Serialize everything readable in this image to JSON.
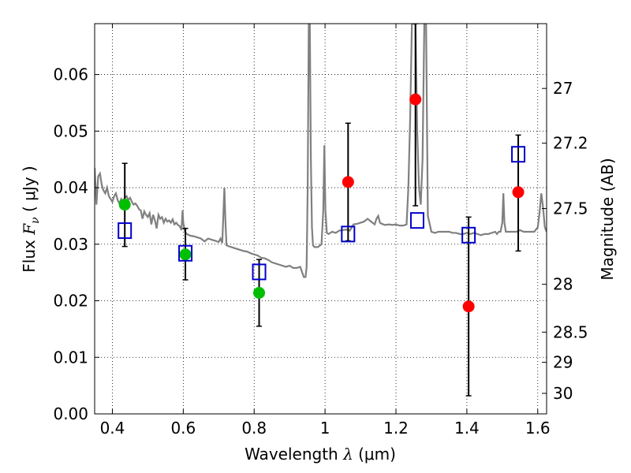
{
  "chart_data": {
    "type": "scatter",
    "xlabel": {
      "prefix": "Wavelength  ",
      "symbol": "λ",
      "unit": " (μm)"
    },
    "ylabel": {
      "prefix": "Flux  ",
      "symbol": "F",
      "subscript": "ν",
      "unit": "  ( μJy )"
    },
    "y2label": "Magnitude (AB)",
    "xlim": [
      0.35,
      1.625
    ],
    "ylim": [
      0.0,
      0.069
    ],
    "grid": true,
    "xticks": [
      {
        "v": 0.4,
        "label": "0.4"
      },
      {
        "v": 0.6,
        "label": "0.6"
      },
      {
        "v": 0.8,
        "label": "0.8"
      },
      {
        "v": 1.0,
        "label": "1"
      },
      {
        "v": 1.2,
        "label": "1.2"
      },
      {
        "v": 1.4,
        "label": "1.4"
      },
      {
        "v": 1.6,
        "label": "1.6"
      }
    ],
    "yticks": [
      {
        "v": 0.0,
        "label": "0.00"
      },
      {
        "v": 0.01,
        "label": "0.01"
      },
      {
        "v": 0.02,
        "label": "0.02"
      },
      {
        "v": 0.03,
        "label": "0.03"
      },
      {
        "v": 0.04,
        "label": "0.04"
      },
      {
        "v": 0.05,
        "label": "0.05"
      },
      {
        "v": 0.06,
        "label": "0.06"
      }
    ],
    "y2ticks": [
      {
        "v": 27,
        "label": "27"
      },
      {
        "v": 27.2,
        "label": "27.2"
      },
      {
        "v": 27.5,
        "label": "27.5"
      },
      {
        "v": 28,
        "label": "28"
      },
      {
        "v": 28.5,
        "label": "28.5"
      },
      {
        "v": 29,
        "label": "29"
      },
      {
        "v": 30,
        "label": "30"
      }
    ],
    "model_spectrum": {
      "color": "#808080",
      "points": [
        [
          0.35,
          0.0435
        ],
        [
          0.355,
          0.037
        ],
        [
          0.36,
          0.042
        ],
        [
          0.365,
          0.0425
        ],
        [
          0.37,
          0.0405
        ],
        [
          0.375,
          0.0395
        ],
        [
          0.38,
          0.039
        ],
        [
          0.385,
          0.04
        ],
        [
          0.39,
          0.0385
        ],
        [
          0.395,
          0.038
        ],
        [
          0.4,
          0.0375
        ],
        [
          0.405,
          0.0385
        ],
        [
          0.41,
          0.039
        ],
        [
          0.415,
          0.0378
        ],
        [
          0.42,
          0.0372
        ],
        [
          0.425,
          0.038
        ],
        [
          0.43,
          0.0375
        ],
        [
          0.435,
          0.0382
        ],
        [
          0.44,
          0.0385
        ],
        [
          0.445,
          0.0378
        ],
        [
          0.45,
          0.0382
        ],
        [
          0.455,
          0.0375
        ],
        [
          0.46,
          0.037
        ],
        [
          0.465,
          0.0372
        ],
        [
          0.47,
          0.0368
        ],
        [
          0.475,
          0.0362
        ],
        [
          0.48,
          0.036
        ],
        [
          0.485,
          0.0345
        ],
        [
          0.49,
          0.0358
        ],
        [
          0.495,
          0.0352
        ],
        [
          0.5,
          0.0348
        ],
        [
          0.505,
          0.0355
        ],
        [
          0.51,
          0.0335
        ],
        [
          0.515,
          0.0352
        ],
        [
          0.52,
          0.0342
        ],
        [
          0.525,
          0.0328
        ],
        [
          0.53,
          0.0352
        ],
        [
          0.535,
          0.0345
        ],
        [
          0.54,
          0.0348
        ],
        [
          0.545,
          0.0338
        ],
        [
          0.55,
          0.0345
        ],
        [
          0.555,
          0.034
        ],
        [
          0.56,
          0.0342
        ],
        [
          0.565,
          0.0338
        ],
        [
          0.57,
          0.0344
        ],
        [
          0.575,
          0.0335
        ],
        [
          0.58,
          0.0338
        ],
        [
          0.585,
          0.0334
        ],
        [
          0.59,
          0.0332
        ],
        [
          0.595,
          0.0325
        ],
        [
          0.598,
          0.036
        ],
        [
          0.6,
          0.0338
        ],
        [
          0.605,
          0.0322
        ],
        [
          0.61,
          0.0318
        ],
        [
          0.62,
          0.0315
        ],
        [
          0.63,
          0.0314
        ],
        [
          0.64,
          0.0312
        ],
        [
          0.65,
          0.031
        ],
        [
          0.66,
          0.0305
        ],
        [
          0.67,
          0.031
        ],
        [
          0.68,
          0.0308
        ],
        [
          0.69,
          0.0306
        ],
        [
          0.7,
          0.0304
        ],
        [
          0.705,
          0.031
        ],
        [
          0.71,
          0.0302
        ],
        [
          0.713,
          0.035
        ],
        [
          0.716,
          0.04
        ],
        [
          0.719,
          0.034
        ],
        [
          0.722,
          0.0298
        ],
        [
          0.73,
          0.0296
        ],
        [
          0.74,
          0.0294
        ],
        [
          0.75,
          0.0292
        ],
        [
          0.76,
          0.029
        ],
        [
          0.77,
          0.0288
        ],
        [
          0.78,
          0.0287
        ],
        [
          0.79,
          0.0284
        ],
        [
          0.8,
          0.0282
        ],
        [
          0.81,
          0.028
        ],
        [
          0.82,
          0.0276
        ],
        [
          0.83,
          0.0275
        ],
        [
          0.84,
          0.0272
        ],
        [
          0.85,
          0.0268
        ],
        [
          0.86,
          0.0266
        ],
        [
          0.87,
          0.0264
        ],
        [
          0.88,
          0.0262
        ],
        [
          0.89,
          0.026
        ],
        [
          0.9,
          0.0262
        ],
        [
          0.91,
          0.0258
        ],
        [
          0.92,
          0.0258
        ],
        [
          0.93,
          0.026
        ],
        [
          0.94,
          0.0242
        ],
        [
          0.945,
          0.0242
        ],
        [
          0.948,
          0.026
        ],
        [
          0.951,
          0.04
        ],
        [
          0.954,
          0.069
        ],
        [
          0.957,
          0.069
        ],
        [
          0.96,
          0.045
        ],
        [
          0.963,
          0.033
        ],
        [
          0.966,
          0.0298
        ],
        [
          0.97,
          0.0295
        ],
        [
          0.98,
          0.0295
        ],
        [
          0.99,
          0.03
        ],
        [
          0.995,
          0.036
        ],
        [
          0.998,
          0.0475
        ],
        [
          1.001,
          0.036
        ],
        [
          1.005,
          0.032
        ],
        [
          1.01,
          0.0318
        ],
        [
          1.02,
          0.0322
        ],
        [
          1.03,
          0.032
        ],
        [
          1.04,
          0.0324
        ],
        [
          1.05,
          0.0325
        ],
        [
          1.06,
          0.0326
        ],
        [
          1.07,
          0.0324
        ],
        [
          1.08,
          0.0335
        ],
        [
          1.09,
          0.0336
        ],
        [
          1.1,
          0.0338
        ],
        [
          1.11,
          0.034
        ],
        [
          1.12,
          0.0345
        ],
        [
          1.13,
          0.034
        ],
        [
          1.14,
          0.0335
        ],
        [
          1.145,
          0.0345
        ],
        [
          1.15,
          0.035
        ],
        [
          1.155,
          0.0338
        ],
        [
          1.16,
          0.0336
        ],
        [
          1.17,
          0.0334
        ],
        [
          1.18,
          0.0335
        ],
        [
          1.19,
          0.0334
        ],
        [
          1.2,
          0.0335
        ],
        [
          1.21,
          0.0333
        ],
        [
          1.22,
          0.0333
        ],
        [
          1.23,
          0.0335
        ],
        [
          1.235,
          0.04
        ],
        [
          1.24,
          0.052
        ],
        [
          1.245,
          0.069
        ],
        [
          1.25,
          0.069
        ],
        [
          1.255,
          0.069
        ],
        [
          1.26,
          0.05
        ],
        [
          1.265,
          0.04
        ],
        [
          1.27,
          0.037
        ],
        [
          1.275,
          0.045
        ],
        [
          1.28,
          0.069
        ],
        [
          1.285,
          0.069
        ],
        [
          1.29,
          0.035
        ],
        [
          1.3,
          0.0322
        ],
        [
          1.31,
          0.032
        ],
        [
          1.32,
          0.0322
        ],
        [
          1.33,
          0.0322
        ],
        [
          1.34,
          0.0322
        ],
        [
          1.35,
          0.0322
        ],
        [
          1.36,
          0.032
        ],
        [
          1.37,
          0.032
        ],
        [
          1.38,
          0.0318
        ],
        [
          1.39,
          0.0318
        ],
        [
          1.4,
          0.032
        ],
        [
          1.41,
          0.0318
        ],
        [
          1.42,
          0.032
        ],
        [
          1.43,
          0.0318
        ],
        [
          1.44,
          0.0316
        ],
        [
          1.45,
          0.0318
        ],
        [
          1.46,
          0.0318
        ],
        [
          1.47,
          0.032
        ],
        [
          1.48,
          0.0322
        ],
        [
          1.485,
          0.0318
        ],
        [
          1.49,
          0.0322
        ],
        [
          1.495,
          0.0322
        ],
        [
          1.5,
          0.0338
        ],
        [
          1.503,
          0.039
        ],
        [
          1.506,
          0.0338
        ],
        [
          1.51,
          0.0322
        ],
        [
          1.52,
          0.0322
        ],
        [
          1.53,
          0.0322
        ],
        [
          1.54,
          0.0322
        ],
        [
          1.55,
          0.0325
        ],
        [
          1.56,
          0.0322
        ],
        [
          1.57,
          0.0322
        ],
        [
          1.58,
          0.0322
        ],
        [
          1.59,
          0.0322
        ],
        [
          1.6,
          0.033
        ],
        [
          1.605,
          0.0355
        ],
        [
          1.61,
          0.039
        ],
        [
          1.615,
          0.0365
        ],
        [
          1.62,
          0.033
        ],
        [
          1.625,
          0.0322
        ]
      ]
    },
    "series": [
      {
        "marker": "circle",
        "color": "#00bf00",
        "x": [
          0.435,
          0.606,
          0.814
        ],
        "y": [
          0.037,
          0.0282,
          0.0214
        ],
        "yerr_low": [
          0.0296,
          0.0237,
          0.0155
        ],
        "yerr_high": [
          0.0443,
          0.0328,
          0.0273
        ]
      },
      {
        "marker": "circle",
        "color": "#ff0000",
        "x": [
          1.065,
          1.255,
          1.405,
          1.545
        ],
        "y": [
          0.041,
          0.0556,
          0.019,
          0.0392
        ],
        "yerr_low": [
          0.0306,
          0.0368,
          0.0032,
          0.0288
        ],
        "yerr_high": [
          0.0514,
          0.069,
          0.0348,
          0.0493
        ]
      },
      {
        "marker": "open-square",
        "color": "#0000cc",
        "x": [
          0.435,
          0.606,
          0.814,
          1.065,
          1.26,
          1.405,
          1.545
        ],
        "y": [
          0.0324,
          0.0284,
          0.0251,
          0.0318,
          0.0342,
          0.0316,
          0.0459
        ]
      }
    ]
  }
}
